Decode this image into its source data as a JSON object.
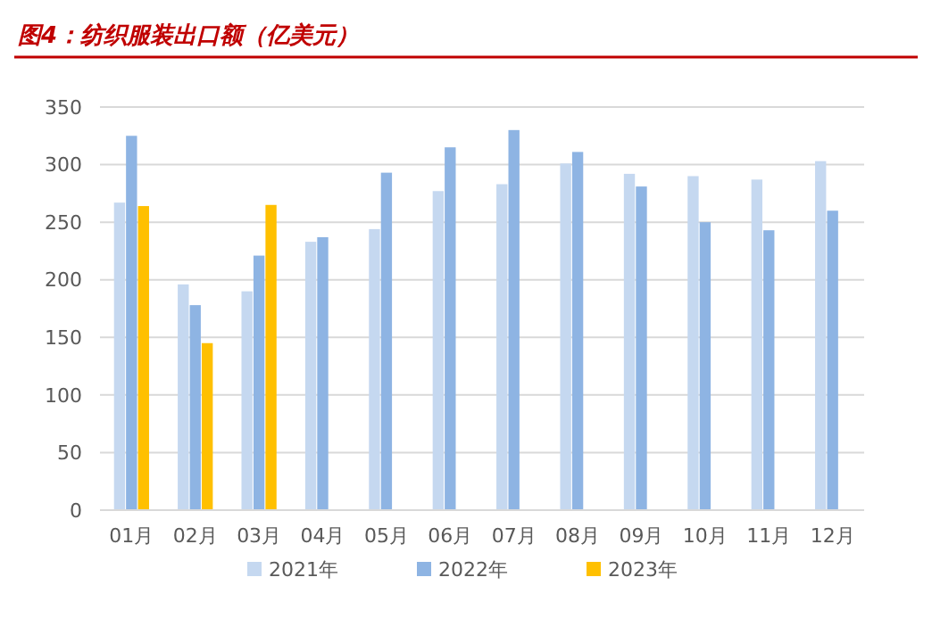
{
  "chart_data": {
    "type": "bar",
    "title": "图4：纺织服装出口额（亿美元）",
    "categories": [
      "01月",
      "02月",
      "03月",
      "04月",
      "05月",
      "06月",
      "07月",
      "08月",
      "09月",
      "10月",
      "11月",
      "12月"
    ],
    "series": [
      {
        "name": "2021年",
        "color": "#c5d8f0",
        "values": [
          267,
          196,
          190,
          233,
          244,
          277,
          283,
          301,
          292,
          290,
          287,
          303
        ]
      },
      {
        "name": "2022年",
        "color": "#8eb4e3",
        "values": [
          325,
          178,
          221,
          237,
          293,
          315,
          330,
          311,
          281,
          250,
          243,
          260
        ]
      },
      {
        "name": "2023年",
        "color": "#ffc000",
        "values": [
          264,
          145,
          265,
          null,
          null,
          null,
          null,
          null,
          null,
          null,
          null,
          null
        ]
      }
    ],
    "ylim": [
      0,
      350
    ],
    "yticks": [
      0,
      50,
      100,
      150,
      200,
      250,
      300,
      350
    ],
    "grid": "y",
    "legend": "bottom"
  }
}
